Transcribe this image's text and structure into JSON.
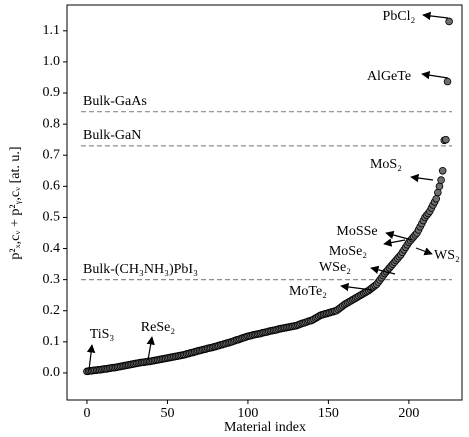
{
  "chart_data": {
    "type": "scatter",
    "x_label": "Material index",
    "y_label": "p²ₓ,cᵥ + p²ᵧ,cᵥ [at. u.]",
    "marker_color": "#6e6e6e",
    "x": [
      0,
      1,
      2,
      3,
      4,
      5,
      6,
      7,
      8,
      9,
      10,
      11,
      12,
      13,
      14,
      15,
      16,
      17,
      18,
      19,
      20,
      21,
      22,
      23,
      24,
      25,
      26,
      27,
      28,
      29,
      30,
      31,
      32,
      33,
      34,
      35,
      36,
      37,
      38,
      39,
      40,
      41,
      42,
      43,
      44,
      45,
      46,
      47,
      48,
      49,
      50,
      51,
      52,
      53,
      54,
      55,
      56,
      57,
      58,
      59,
      60,
      61,
      62,
      63,
      64,
      65,
      66,
      67,
      68,
      69,
      70,
      71,
      72,
      73,
      74,
      75,
      76,
      77,
      78,
      79,
      80,
      81,
      82,
      83,
      84,
      85,
      86,
      87,
      88,
      89,
      90,
      91,
      92,
      93,
      94,
      95,
      96,
      97,
      98,
      99,
      100,
      101,
      102,
      103,
      104,
      105,
      106,
      107,
      108,
      109,
      110,
      111,
      112,
      113,
      114,
      115,
      116,
      117,
      118,
      119,
      120,
      121,
      122,
      123,
      124,
      125,
      126,
      127,
      128,
      129,
      130,
      131,
      132,
      133,
      134,
      135,
      136,
      137,
      138,
      139,
      140,
      141,
      142,
      143,
      144,
      145,
      146,
      147,
      148,
      149,
      150,
      151,
      152,
      153,
      154,
      155,
      156,
      157,
      158,
      159,
      160,
      161,
      162,
      163,
      164,
      165,
      166,
      167,
      168,
      169,
      170,
      171,
      172,
      173,
      174,
      175,
      176,
      177,
      178,
      179,
      180,
      181,
      182,
      183,
      184,
      185,
      186,
      187,
      188,
      189,
      190,
      191,
      192,
      193,
      194,
      195,
      196,
      197,
      198,
      199,
      200,
      201,
      202,
      203,
      204,
      205,
      206,
      207,
      208,
      209,
      210,
      211,
      212,
      213,
      214,
      215,
      216,
      217,
      218,
      219,
      220,
      221,
      222,
      223,
      224,
      225
    ],
    "values": [
      0.005,
      0.006,
      0.007,
      0.007,
      0.008,
      0.009,
      0.009,
      0.01,
      0.01,
      0.011,
      0.012,
      0.013,
      0.013,
      0.014,
      0.015,
      0.016,
      0.017,
      0.017,
      0.018,
      0.019,
      0.02,
      0.021,
      0.022,
      0.023,
      0.024,
      0.025,
      0.026,
      0.027,
      0.028,
      0.029,
      0.03,
      0.031,
      0.032,
      0.033,
      0.034,
      0.034,
      0.035,
      0.036,
      0.037,
      0.037,
      0.038,
      0.039,
      0.04,
      0.041,
      0.042,
      0.043,
      0.044,
      0.045,
      0.046,
      0.047,
      0.048,
      0.049,
      0.05,
      0.051,
      0.052,
      0.053,
      0.054,
      0.055,
      0.056,
      0.057,
      0.058,
      0.059,
      0.061,
      0.062,
      0.064,
      0.065,
      0.066,
      0.068,
      0.069,
      0.071,
      0.072,
      0.073,
      0.075,
      0.076,
      0.077,
      0.079,
      0.08,
      0.081,
      0.082,
      0.084,
      0.085,
      0.087,
      0.088,
      0.09,
      0.091,
      0.093,
      0.094,
      0.096,
      0.097,
      0.099,
      0.1,
      0.102,
      0.104,
      0.106,
      0.107,
      0.109,
      0.111,
      0.113,
      0.114,
      0.116,
      0.118,
      0.119,
      0.12,
      0.122,
      0.123,
      0.124,
      0.125,
      0.126,
      0.127,
      0.129,
      0.13,
      0.131,
      0.132,
      0.134,
      0.135,
      0.136,
      0.137,
      0.138,
      0.139,
      0.141,
      0.142,
      0.143,
      0.144,
      0.145,
      0.146,
      0.147,
      0.148,
      0.149,
      0.15,
      0.151,
      0.152,
      0.154,
      0.156,
      0.158,
      0.16,
      0.161,
      0.163,
      0.165,
      0.167,
      0.168,
      0.17,
      0.173,
      0.176,
      0.179,
      0.182,
      0.185,
      0.187,
      0.188,
      0.19,
      0.191,
      0.193,
      0.194,
      0.196,
      0.197,
      0.199,
      0.2,
      0.204,
      0.208,
      0.212,
      0.216,
      0.22,
      0.223,
      0.226,
      0.229,
      0.232,
      0.235,
      0.238,
      0.241,
      0.244,
      0.247,
      0.25,
      0.253,
      0.256,
      0.259,
      0.262,
      0.265,
      0.269,
      0.273,
      0.277,
      0.281,
      0.285,
      0.292,
      0.299,
      0.306,
      0.313,
      0.32,
      0.326,
      0.332,
      0.338,
      0.344,
      0.35,
      0.356,
      0.362,
      0.368,
      0.374,
      0.38,
      0.388,
      0.396,
      0.404,
      0.412,
      0.42,
      0.426,
      0.432,
      0.438,
      0.444,
      0.45,
      0.46,
      0.47,
      0.48,
      0.49,
      0.5,
      0.507,
      0.513,
      0.52,
      0.53,
      0.54,
      0.55,
      0.56,
      0.58,
      0.6,
      0.62,
      0.65,
      0.748,
      0.75,
      0.937,
      1.13
    ],
    "xlim": [
      -12.4,
      233
    ],
    "ylim": [
      -0.087,
      1.183
    ],
    "xticks": [
      0,
      50,
      100,
      150,
      200
    ],
    "yticks": [
      {
        "value": 0,
        "label": "0.0"
      },
      {
        "value": 0.1,
        "label": "0.1"
      },
      {
        "value": 0.2,
        "label": "0.2"
      },
      {
        "value": 0.3,
        "label": "0.3"
      },
      {
        "value": 0.4,
        "label": "0.4"
      },
      {
        "value": 0.5,
        "label": "0.5"
      },
      {
        "value": 0.6,
        "label": "0.6"
      },
      {
        "value": 0.7,
        "label": "0.7"
      },
      {
        "value": 0.8,
        "label": "0.8"
      },
      {
        "value": 0.9,
        "label": "0.9"
      },
      {
        "value": 1.0,
        "label": "1.0"
      },
      {
        "value": 1.1,
        "label": "1.1"
      }
    ],
    "reference_lines": [
      {
        "label": "Bulk-GaAs",
        "value": 0.84,
        "color": "#8c8c8c"
      },
      {
        "label": "Bulk-GaN",
        "value": 0.73,
        "color": "#8c8c8c"
      },
      {
        "label": "Bulk-(CH₃NH₃)PbI₃",
        "value": 0.3,
        "color": "#8c8c8c"
      }
    ],
    "annotations": [
      "PbCl₂",
      "AlGeTe",
      "MoS₂",
      "MoSSe",
      "MoSe₂",
      "WS₂",
      "WSe₂",
      "MoTe₂",
      "TiS₃",
      "ReSe₂"
    ]
  }
}
